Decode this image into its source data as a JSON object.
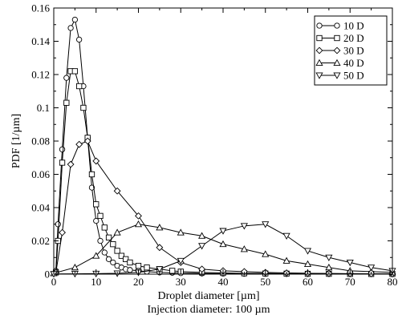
{
  "chart_data": {
    "type": "line",
    "title": "",
    "xlabel": "Droplet diameter [µm]",
    "ylabel": "PDF [1/µm]",
    "annotation": "Injection diameter: 100 µm",
    "xlim": [
      0,
      80
    ],
    "ylim": [
      0,
      0.16
    ],
    "xticks": [
      0,
      10,
      20,
      30,
      40,
      50,
      60,
      70,
      80
    ],
    "yticks": [
      0,
      0.02,
      0.04,
      0.06,
      0.08,
      0.1,
      0.12,
      0.14,
      0.16
    ],
    "xtick_labels": [
      "0",
      "10",
      "20",
      "30",
      "40",
      "50",
      "60",
      "70",
      "80"
    ],
    "ytick_labels": [
      "0",
      "0.02",
      "0.04",
      "0.06",
      "0.08",
      "0.1",
      "0.12",
      "0.14",
      "0.16"
    ],
    "grid": false,
    "legend_position": "top-right",
    "series": [
      {
        "name": "10 D",
        "marker": "circle",
        "points": [
          [
            0.5,
            0.002
          ],
          [
            1,
            0.03
          ],
          [
            2,
            0.075
          ],
          [
            3,
            0.118
          ],
          [
            4,
            0.148
          ],
          [
            5,
            0.153
          ],
          [
            6,
            0.141
          ],
          [
            7,
            0.113
          ],
          [
            8,
            0.082
          ],
          [
            9,
            0.052
          ],
          [
            10,
            0.032
          ],
          [
            11,
            0.02
          ],
          [
            12,
            0.013
          ],
          [
            13,
            0.009
          ],
          [
            14,
            0.007
          ],
          [
            15,
            0.005
          ],
          [
            16,
            0.004
          ],
          [
            17,
            0.003
          ],
          [
            18,
            0.0025
          ],
          [
            20,
            0.002
          ],
          [
            22,
            0.0015
          ],
          [
            25,
            0.001
          ],
          [
            28,
            0.0008
          ],
          [
            30,
            0.0006
          ],
          [
            35,
            0.0004
          ],
          [
            40,
            0.0003
          ],
          [
            45,
            0.0002
          ],
          [
            50,
            0.00015
          ],
          [
            55,
            0.0001
          ],
          [
            60,
            0.0001
          ],
          [
            65,
            0.0001
          ],
          [
            70,
            0.0001
          ],
          [
            75,
            0.0001
          ],
          [
            80,
            0.0001
          ]
        ]
      },
      {
        "name": "20 D",
        "marker": "square",
        "points": [
          [
            0.5,
            0.001
          ],
          [
            1,
            0.02
          ],
          [
            2,
            0.067
          ],
          [
            3,
            0.103
          ],
          [
            4,
            0.122
          ],
          [
            5,
            0.122
          ],
          [
            6,
            0.113
          ],
          [
            7,
            0.1
          ],
          [
            8,
            0.082
          ],
          [
            9,
            0.06
          ],
          [
            10,
            0.042
          ],
          [
            11,
            0.035
          ],
          [
            12,
            0.028
          ],
          [
            13,
            0.022
          ],
          [
            14,
            0.018
          ],
          [
            15,
            0.014
          ],
          [
            16,
            0.011
          ],
          [
            17,
            0.009
          ],
          [
            18,
            0.007
          ],
          [
            20,
            0.005
          ],
          [
            22,
            0.004
          ],
          [
            25,
            0.003
          ],
          [
            28,
            0.002
          ],
          [
            30,
            0.0015
          ],
          [
            35,
            0.001
          ],
          [
            40,
            0.0007
          ],
          [
            45,
            0.0005
          ],
          [
            50,
            0.0004
          ],
          [
            55,
            0.0003
          ],
          [
            60,
            0.0002
          ],
          [
            65,
            0.0002
          ],
          [
            70,
            0.0001
          ],
          [
            75,
            0.0001
          ],
          [
            80,
            0.0001
          ]
        ]
      },
      {
        "name": "30 D",
        "marker": "diamond",
        "points": [
          [
            0.5,
            0.001
          ],
          [
            2,
            0.025
          ],
          [
            4,
            0.066
          ],
          [
            6,
            0.078
          ],
          [
            8,
            0.08
          ],
          [
            10,
            0.068
          ],
          [
            15,
            0.05
          ],
          [
            20,
            0.035
          ],
          [
            25,
            0.016
          ],
          [
            30,
            0.007
          ],
          [
            35,
            0.003
          ],
          [
            40,
            0.002
          ],
          [
            45,
            0.0015
          ],
          [
            50,
            0.001
          ],
          [
            55,
            0.0007
          ],
          [
            60,
            0.0005
          ],
          [
            65,
            0.0004
          ],
          [
            70,
            0.0003
          ],
          [
            75,
            0.0002
          ],
          [
            80,
            0.0001
          ]
        ]
      },
      {
        "name": "40 D",
        "marker": "triangle-up",
        "points": [
          [
            0,
            0.0005
          ],
          [
            5,
            0.004
          ],
          [
            10,
            0.011
          ],
          [
            15,
            0.025
          ],
          [
            20,
            0.03
          ],
          [
            25,
            0.028
          ],
          [
            30,
            0.025
          ],
          [
            35,
            0.023
          ],
          [
            40,
            0.018
          ],
          [
            45,
            0.015
          ],
          [
            50,
            0.012
          ],
          [
            55,
            0.008
          ],
          [
            60,
            0.006
          ],
          [
            65,
            0.004
          ],
          [
            70,
            0.002
          ],
          [
            75,
            0.0015
          ],
          [
            80,
            0.001
          ]
        ]
      },
      {
        "name": "50 D",
        "marker": "triangle-down",
        "points": [
          [
            0,
            0.0001
          ],
          [
            5,
            0.0002
          ],
          [
            10,
            0.0003
          ],
          [
            15,
            0.0005
          ],
          [
            20,
            0.001
          ],
          [
            25,
            0.003
          ],
          [
            30,
            0.008
          ],
          [
            35,
            0.017
          ],
          [
            40,
            0.026
          ],
          [
            45,
            0.029
          ],
          [
            50,
            0.03
          ],
          [
            55,
            0.023
          ],
          [
            60,
            0.014
          ],
          [
            65,
            0.01
          ],
          [
            70,
            0.007
          ],
          [
            75,
            0.004
          ],
          [
            80,
            0.002
          ]
        ]
      }
    ]
  }
}
